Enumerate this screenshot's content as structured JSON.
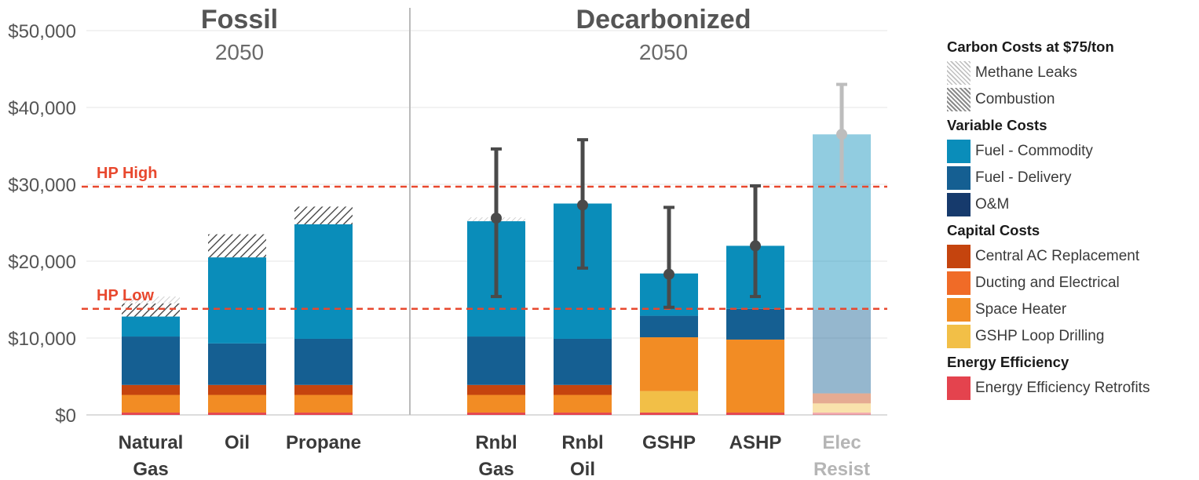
{
  "chart_data": {
    "type": "bar",
    "stacked": true,
    "yrange": [
      0,
      50000
    ],
    "yticks": [
      "$50,000",
      "$40,000",
      "$30,000",
      "$20,000",
      "$10,000",
      "$0"
    ],
    "grid": true,
    "groups": [
      {
        "title": "Fossil",
        "subtitle": "2050"
      },
      {
        "title": "Decarbonized",
        "subtitle": "2050"
      }
    ],
    "categories": [
      {
        "lines": [
          "Natural",
          "Gas"
        ],
        "group": 0
      },
      {
        "lines": [
          "Oil"
        ],
        "group": 0
      },
      {
        "lines": [
          "Propane"
        ],
        "group": 0
      },
      {
        "lines": [
          "Rnbl",
          "Gas"
        ],
        "group": 1
      },
      {
        "lines": [
          "Rnbl",
          "Oil"
        ],
        "group": 1
      },
      {
        "lines": [
          "GSHP"
        ],
        "group": 1
      },
      {
        "lines": [
          "ASHP"
        ],
        "group": 1
      },
      {
        "lines": [
          "Elec",
          "Resist"
        ],
        "group": 1,
        "faded": true
      }
    ],
    "stacks": [
      [
        {
          "k": "ee",
          "v": 300
        },
        {
          "k": "sh",
          "v": 2300
        },
        {
          "k": "ac",
          "v": 1300
        },
        {
          "k": "fd",
          "v": 6300
        },
        {
          "k": "fc",
          "v": 2600
        },
        {
          "k": "co",
          "v": 1700
        },
        {
          "k": "ml",
          "v": 900
        }
      ],
      [
        {
          "k": "ee",
          "v": 300
        },
        {
          "k": "sh",
          "v": 2300
        },
        {
          "k": "ac",
          "v": 1300
        },
        {
          "k": "fd",
          "v": 5400
        },
        {
          "k": "fc",
          "v": 11200
        },
        {
          "k": "co",
          "v": 3000
        }
      ],
      [
        {
          "k": "ee",
          "v": 300
        },
        {
          "k": "sh",
          "v": 2300
        },
        {
          "k": "ac",
          "v": 1300
        },
        {
          "k": "fd",
          "v": 6000
        },
        {
          "k": "fc",
          "v": 14900
        },
        {
          "k": "co",
          "v": 2300
        }
      ],
      [
        {
          "k": "ee",
          "v": 300
        },
        {
          "k": "sh",
          "v": 2300
        },
        {
          "k": "ac",
          "v": 1300
        },
        {
          "k": "fd",
          "v": 6300
        },
        {
          "k": "fc",
          "v": 15000
        },
        {
          "k": "ml",
          "v": 500
        }
      ],
      [
        {
          "k": "ee",
          "v": 300
        },
        {
          "k": "sh",
          "v": 2300
        },
        {
          "k": "ac",
          "v": 1300
        },
        {
          "k": "fd",
          "v": 6000
        },
        {
          "k": "fc",
          "v": 17600
        }
      ],
      [
        {
          "k": "ee",
          "v": 300
        },
        {
          "k": "gl",
          "v": 2800
        },
        {
          "k": "sh",
          "v": 7000
        },
        {
          "k": "fd",
          "v": 2800
        },
        {
          "k": "fc",
          "v": 5500
        }
      ],
      [
        {
          "k": "ee",
          "v": 300
        },
        {
          "k": "sh",
          "v": 9500
        },
        {
          "k": "fd",
          "v": 4000
        },
        {
          "k": "fc",
          "v": 8200
        }
      ],
      [
        {
          "k": "ee",
          "v": 300
        },
        {
          "k": "gl",
          "v": 1200
        },
        {
          "k": "ac",
          "v": 1300
        },
        {
          "k": "fd",
          "v": 10900
        },
        {
          "k": "fc",
          "v": 22800
        }
      ]
    ],
    "error_bars": [
      null,
      null,
      null,
      {
        "point": 25600,
        "low": 15400,
        "high": 34600
      },
      {
        "point": 27300,
        "low": 19100,
        "high": 35800
      },
      {
        "point": 18300,
        "low": 14000,
        "high": 27000
      },
      {
        "point": 22000,
        "low": 15400,
        "high": 29800
      },
      {
        "point": 36500,
        "low": 30000,
        "high": 43000
      }
    ],
    "reference_lines": [
      {
        "label": "HP High",
        "value": 29700
      },
      {
        "label": "HP Low",
        "value": 13800
      }
    ]
  },
  "legend": [
    {
      "title": "Carbon Costs at $75/ton",
      "items": [
        {
          "key": "ml",
          "label": "Methane Leaks"
        },
        {
          "key": "co",
          "label": "Combustion"
        }
      ]
    },
    {
      "title": "Variable Costs",
      "items": [
        {
          "key": "fc",
          "label": "Fuel - Commodity"
        },
        {
          "key": "fd",
          "label": "Fuel - Delivery"
        },
        {
          "key": "om",
          "label": "O&M"
        }
      ]
    },
    {
      "title": "Capital Costs",
      "items": [
        {
          "key": "ac",
          "label": "Central AC Replacement"
        },
        {
          "key": "de",
          "label": "Ducting and Electrical"
        },
        {
          "key": "sh",
          "label": "Space Heater"
        },
        {
          "key": "gl",
          "label": "GSHP Loop Drilling"
        }
      ]
    },
    {
      "title": "Energy Efficiency",
      "items": [
        {
          "key": "ee",
          "label": "Energy Efficiency Retrofits"
        }
      ]
    }
  ],
  "colors": {
    "fc": "#0a8dba",
    "fd": "#155f92",
    "om": "#163a6c",
    "ac": "#c5440e",
    "de": "#f06b27",
    "sh": "#f28c24",
    "gl": "#f2bf47",
    "ee": "#e4434e",
    "reference": "#e8482e",
    "error": "#4a4a4a",
    "error_faded": "#bdbdbd",
    "hatch": "#333333",
    "hatch_light": "#aaaaaa"
  }
}
